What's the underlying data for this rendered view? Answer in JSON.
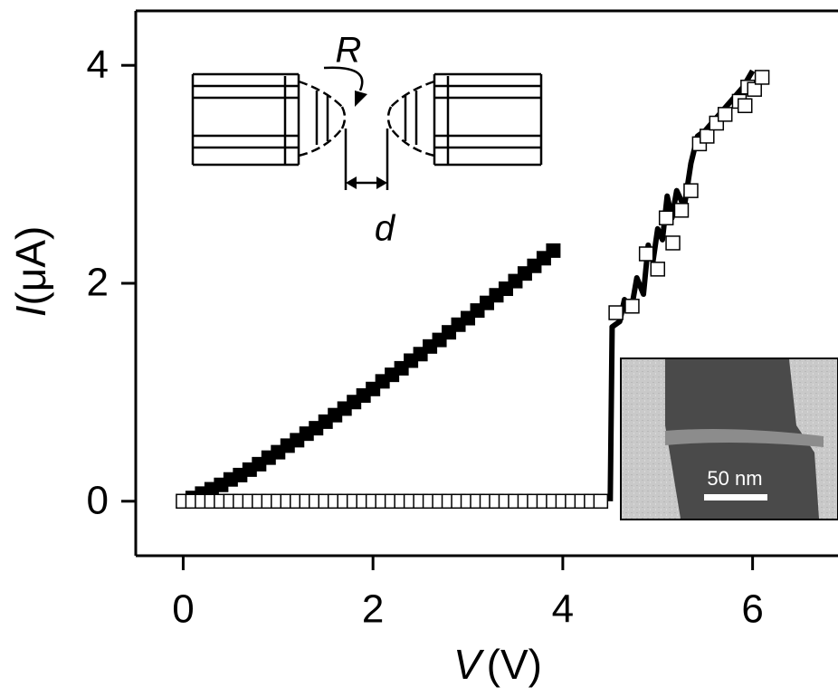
{
  "chart_data": {
    "type": "scatter",
    "x_label_symbol": "V",
    "x_label_unit": "(V)",
    "y_label_symbol": "I",
    "y_label_unit": "(μA)",
    "xlim": [
      -0.5,
      6.9
    ],
    "ylim": [
      -0.5,
      4.5
    ],
    "xticks": [
      0,
      2,
      4,
      6
    ],
    "yticks": [
      0,
      2,
      4
    ],
    "series": [
      {
        "marker": "line",
        "color": "#000000",
        "x": [
          4.5,
          4.52,
          4.6,
          4.65,
          4.72,
          4.78,
          4.85,
          4.9,
          4.95,
          5.0,
          5.05,
          5.1,
          5.15,
          5.2,
          5.28,
          5.35,
          5.42,
          5.5,
          5.6,
          5.7,
          5.8,
          5.9,
          6.0
        ],
        "values": [
          0,
          1.6,
          1.65,
          1.85,
          1.75,
          2.05,
          1.9,
          2.35,
          2.2,
          2.5,
          2.4,
          2.8,
          2.6,
          2.85,
          2.7,
          3.1,
          3.35,
          3.4,
          3.5,
          3.6,
          3.7,
          3.8,
          3.95
        ]
      },
      {
        "marker": "square-filled",
        "color": "#000000",
        "x": [
          0,
          0.1,
          0.2,
          0.3,
          0.4,
          0.5,
          0.6,
          0.7,
          0.8,
          0.9,
          1.0,
          1.1,
          1.2,
          1.3,
          1.4,
          1.5,
          1.6,
          1.7,
          1.8,
          1.9,
          2.0,
          2.1,
          2.2,
          2.3,
          2.4,
          2.5,
          2.6,
          2.7,
          2.8,
          2.9,
          3.0,
          3.1,
          3.2,
          3.3,
          3.4,
          3.5,
          3.6,
          3.7,
          3.8,
          3.9
        ],
        "values": [
          0,
          0.03,
          0.07,
          0.11,
          0.15,
          0.2,
          0.24,
          0.29,
          0.34,
          0.4,
          0.45,
          0.51,
          0.56,
          0.62,
          0.67,
          0.73,
          0.79,
          0.85,
          0.91,
          0.97,
          1.03,
          1.1,
          1.16,
          1.22,
          1.29,
          1.35,
          1.42,
          1.48,
          1.55,
          1.62,
          1.68,
          1.75,
          1.82,
          1.89,
          1.95,
          2.02,
          2.09,
          2.16,
          2.23,
          2.3
        ]
      },
      {
        "marker": "square-open",
        "color": "#000000",
        "x": [
          0,
          0.1,
          0.2,
          0.3,
          0.4,
          0.5,
          0.6,
          0.7,
          0.8,
          0.9,
          1.0,
          1.1,
          1.2,
          1.3,
          1.4,
          1.5,
          1.6,
          1.7,
          1.8,
          1.9,
          2.0,
          2.1,
          2.2,
          2.3,
          2.4,
          2.5,
          2.6,
          2.7,
          2.8,
          2.9,
          3.0,
          3.1,
          3.2,
          3.3,
          3.4,
          3.5,
          3.6,
          3.7,
          3.8,
          3.9,
          4.0,
          4.1,
          4.2,
          4.3,
          4.4,
          4.56,
          4.73,
          4.88,
          5.0,
          5.09,
          5.16,
          5.25,
          5.35,
          5.44,
          5.52,
          5.62,
          5.71,
          5.86,
          5.92,
          5.95,
          6.02,
          6.1
        ],
        "values": [
          0,
          0,
          0,
          0,
          0,
          0,
          0,
          0,
          0,
          0,
          0,
          0,
          0,
          0,
          0,
          0,
          0,
          0,
          0,
          0,
          0,
          0,
          0,
          0,
          0,
          0,
          0,
          0,
          0,
          0,
          0,
          0,
          0,
          0,
          0,
          0,
          0,
          0,
          0,
          0,
          0,
          0,
          0,
          0,
          0,
          1.73,
          1.79,
          2.27,
          2.13,
          2.6,
          2.37,
          2.67,
          2.85,
          3.28,
          3.35,
          3.47,
          3.55,
          3.67,
          3.63,
          3.8,
          3.78,
          3.89
        ]
      }
    ],
    "inset_labels": {
      "radius": "R",
      "gap": "d",
      "scale_bar": "50 nm"
    }
  }
}
